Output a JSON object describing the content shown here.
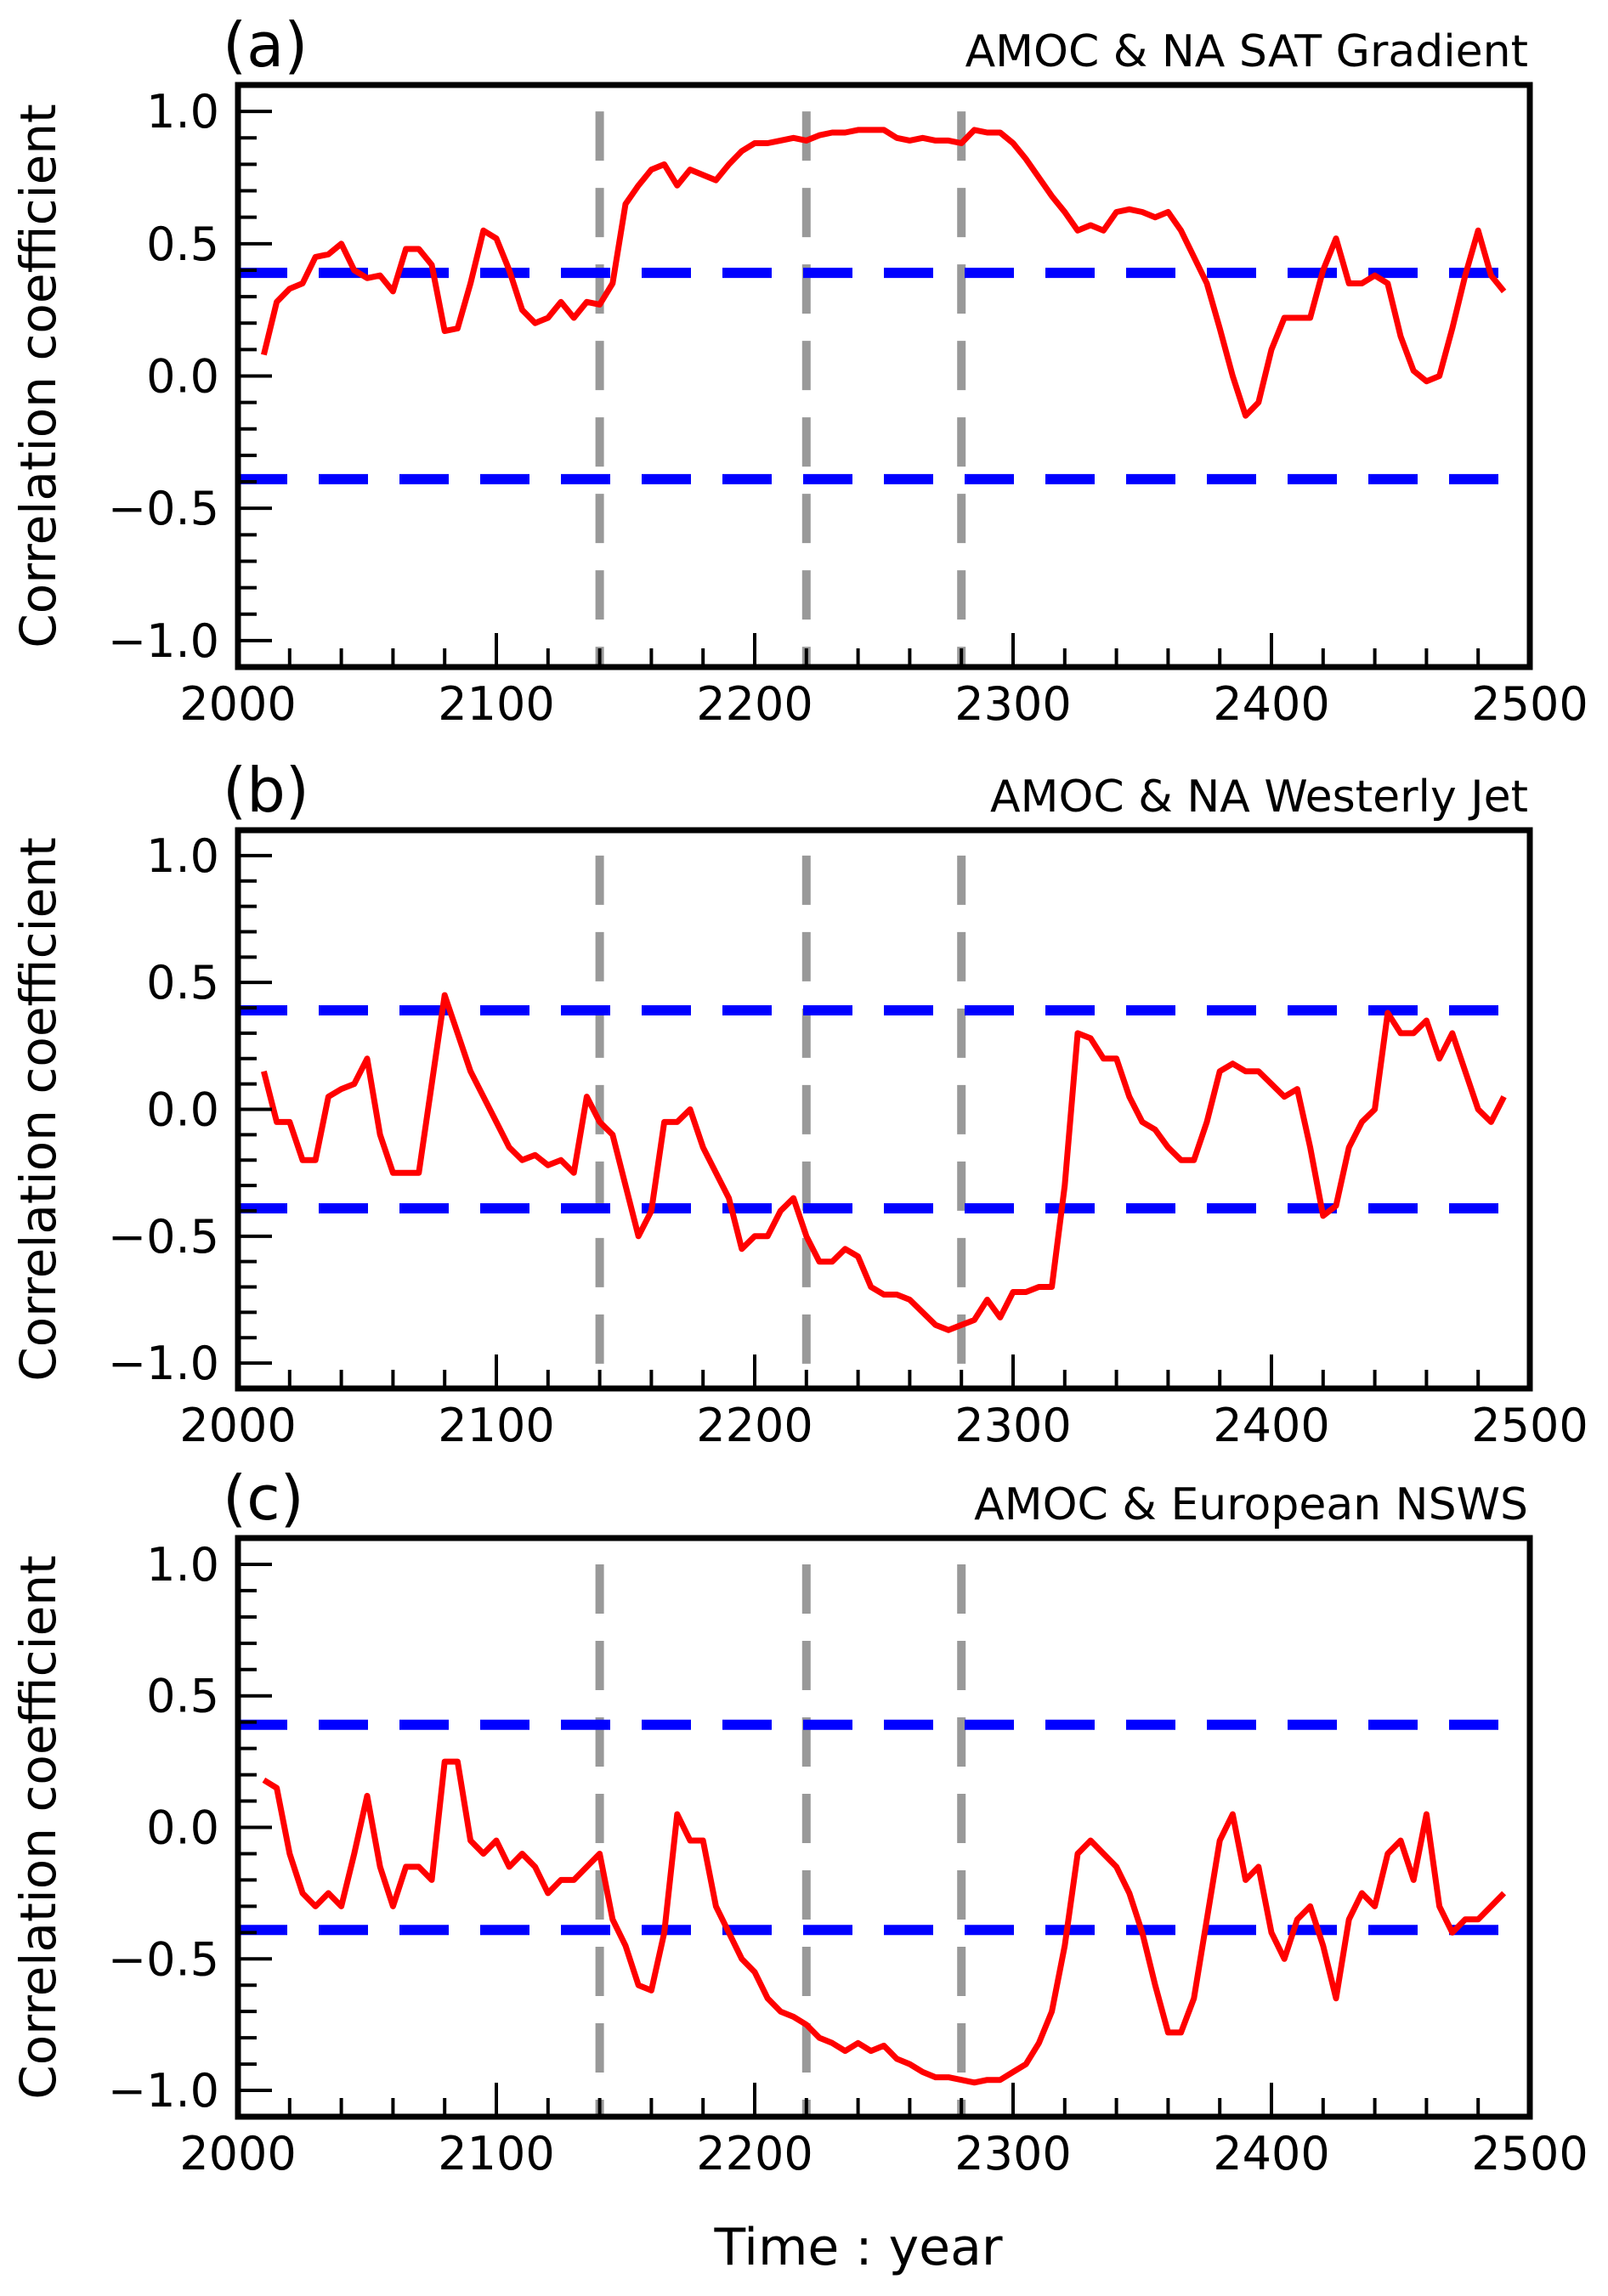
{
  "chart_data": [
    {
      "type": "line",
      "panel_label": "(a)",
      "title": "AMOC & NA SAT Gradient",
      "ylabel": "Correlation coefficient",
      "xlim": [
        2000,
        2500
      ],
      "ylim": [
        -1.1,
        1.1
      ],
      "xticks": [
        "2000",
        "2100",
        "2200",
        "2300",
        "2400",
        "2500"
      ],
      "yticks": [
        "1.0",
        "0.5",
        "0.0",
        "−0.5",
        "−1.0"
      ],
      "threshold": 0.39,
      "vlines": [
        2140,
        2220,
        2280
      ],
      "x_start": 2010,
      "x_step": 5,
      "values": [
        0.08,
        0.28,
        0.33,
        0.35,
        0.45,
        0.46,
        0.5,
        0.4,
        0.37,
        0.38,
        0.32,
        0.48,
        0.48,
        0.42,
        0.17,
        0.18,
        0.35,
        0.55,
        0.52,
        0.4,
        0.25,
        0.2,
        0.22,
        0.28,
        0.22,
        0.28,
        0.27,
        0.35,
        0.65,
        0.72,
        0.78,
        0.8,
        0.72,
        0.78,
        0.76,
        0.74,
        0.8,
        0.85,
        0.88,
        0.88,
        0.89,
        0.9,
        0.89,
        0.91,
        0.92,
        0.92,
        0.93,
        0.93,
        0.93,
        0.9,
        0.89,
        0.9,
        0.89,
        0.89,
        0.88,
        0.93,
        0.92,
        0.92,
        0.88,
        0.82,
        0.75,
        0.68,
        0.62,
        0.55,
        0.57,
        0.55,
        0.62,
        0.63,
        0.62,
        0.6,
        0.62,
        0.55,
        0.45,
        0.35,
        0.18,
        0.0,
        -0.15,
        -0.1,
        0.1,
        0.22,
        0.22,
        0.22,
        0.4,
        0.52,
        0.35,
        0.35,
        0.38,
        0.35,
        0.15,
        0.02,
        -0.02,
        0.0,
        0.18,
        0.38,
        0.55,
        0.38,
        0.32
      ]
    },
    {
      "type": "line",
      "panel_label": "(b)",
      "title": "AMOC & NA Westerly Jet",
      "ylabel": "Correlation coefficient",
      "xlim": [
        2000,
        2500
      ],
      "ylim": [
        -1.1,
        1.1
      ],
      "xticks": [
        "2000",
        "2100",
        "2200",
        "2300",
        "2400",
        "2500"
      ],
      "yticks": [
        "1.0",
        "0.5",
        "0.0",
        "−0.5",
        "−1.0"
      ],
      "threshold": 0.39,
      "vlines": [
        2140,
        2220,
        2280
      ],
      "x_start": 2010,
      "x_step": 5,
      "values": [
        0.15,
        -0.05,
        -0.05,
        -0.2,
        -0.2,
        0.05,
        0.08,
        0.1,
        0.2,
        -0.1,
        -0.25,
        -0.25,
        -0.25,
        0.1,
        0.45,
        0.3,
        0.15,
        0.05,
        -0.05,
        -0.15,
        -0.2,
        -0.18,
        -0.22,
        -0.2,
        -0.25,
        0.05,
        -0.05,
        -0.1,
        -0.3,
        -0.5,
        -0.4,
        -0.05,
        -0.05,
        0.0,
        -0.15,
        -0.25,
        -0.35,
        -0.55,
        -0.5,
        -0.5,
        -0.4,
        -0.35,
        -0.5,
        -0.6,
        -0.6,
        -0.55,
        -0.58,
        -0.7,
        -0.73,
        -0.73,
        -0.75,
        -0.8,
        -0.85,
        -0.87,
        -0.85,
        -0.83,
        -0.75,
        -0.82,
        -0.72,
        -0.72,
        -0.7,
        -0.7,
        -0.3,
        0.3,
        0.28,
        0.2,
        0.2,
        0.05,
        -0.05,
        -0.08,
        -0.15,
        -0.2,
        -0.2,
        -0.05,
        0.15,
        0.18,
        0.15,
        0.15,
        0.1,
        0.05,
        0.08,
        -0.15,
        -0.42,
        -0.38,
        -0.15,
        -0.05,
        0.0,
        0.38,
        0.3,
        0.3,
        0.35,
        0.2,
        0.3,
        0.15,
        0.0,
        -0.05,
        0.05
      ]
    },
    {
      "type": "line",
      "panel_label": "(c)",
      "title": "AMOC & European NSWS",
      "ylabel": "Correlation coefficient",
      "xlim": [
        2000,
        2500
      ],
      "ylim": [
        -1.1,
        1.1
      ],
      "xticks": [
        "2000",
        "2100",
        "2200",
        "2300",
        "2400",
        "2500"
      ],
      "yticks": [
        "1.0",
        "0.5",
        "0.0",
        "−0.5",
        "−1.0"
      ],
      "threshold": 0.39,
      "vlines": [
        2140,
        2220,
        2280
      ],
      "x_start": 2010,
      "x_step": 5,
      "values": [
        0.18,
        0.15,
        -0.1,
        -0.25,
        -0.3,
        -0.25,
        -0.3,
        -0.1,
        0.12,
        -0.15,
        -0.3,
        -0.15,
        -0.15,
        -0.2,
        0.25,
        0.25,
        -0.05,
        -0.1,
        -0.05,
        -0.15,
        -0.1,
        -0.15,
        -0.25,
        -0.2,
        -0.2,
        -0.15,
        -0.1,
        -0.35,
        -0.45,
        -0.6,
        -0.62,
        -0.4,
        0.05,
        -0.05,
        -0.05,
        -0.3,
        -0.4,
        -0.5,
        -0.55,
        -0.65,
        -0.7,
        -0.72,
        -0.75,
        -0.8,
        -0.82,
        -0.85,
        -0.82,
        -0.85,
        -0.83,
        -0.88,
        -0.9,
        -0.93,
        -0.95,
        -0.95,
        -0.96,
        -0.97,
        -0.96,
        -0.96,
        -0.93,
        -0.9,
        -0.82,
        -0.7,
        -0.45,
        -0.1,
        -0.05,
        -0.1,
        -0.15,
        -0.25,
        -0.4,
        -0.6,
        -0.78,
        -0.78,
        -0.65,
        -0.35,
        -0.05,
        0.05,
        -0.2,
        -0.15,
        -0.4,
        -0.5,
        -0.35,
        -0.3,
        -0.45,
        -0.65,
        -0.35,
        -0.25,
        -0.3,
        -0.1,
        -0.05,
        -0.2,
        0.05,
        -0.3,
        -0.4,
        -0.35,
        -0.35,
        -0.3,
        -0.25
      ]
    }
  ],
  "xlabel": "Time : year",
  "colors": {
    "series": "#ff0000",
    "threshold": "#0000ff",
    "vline": "#999999",
    "axes": "#000000"
  }
}
